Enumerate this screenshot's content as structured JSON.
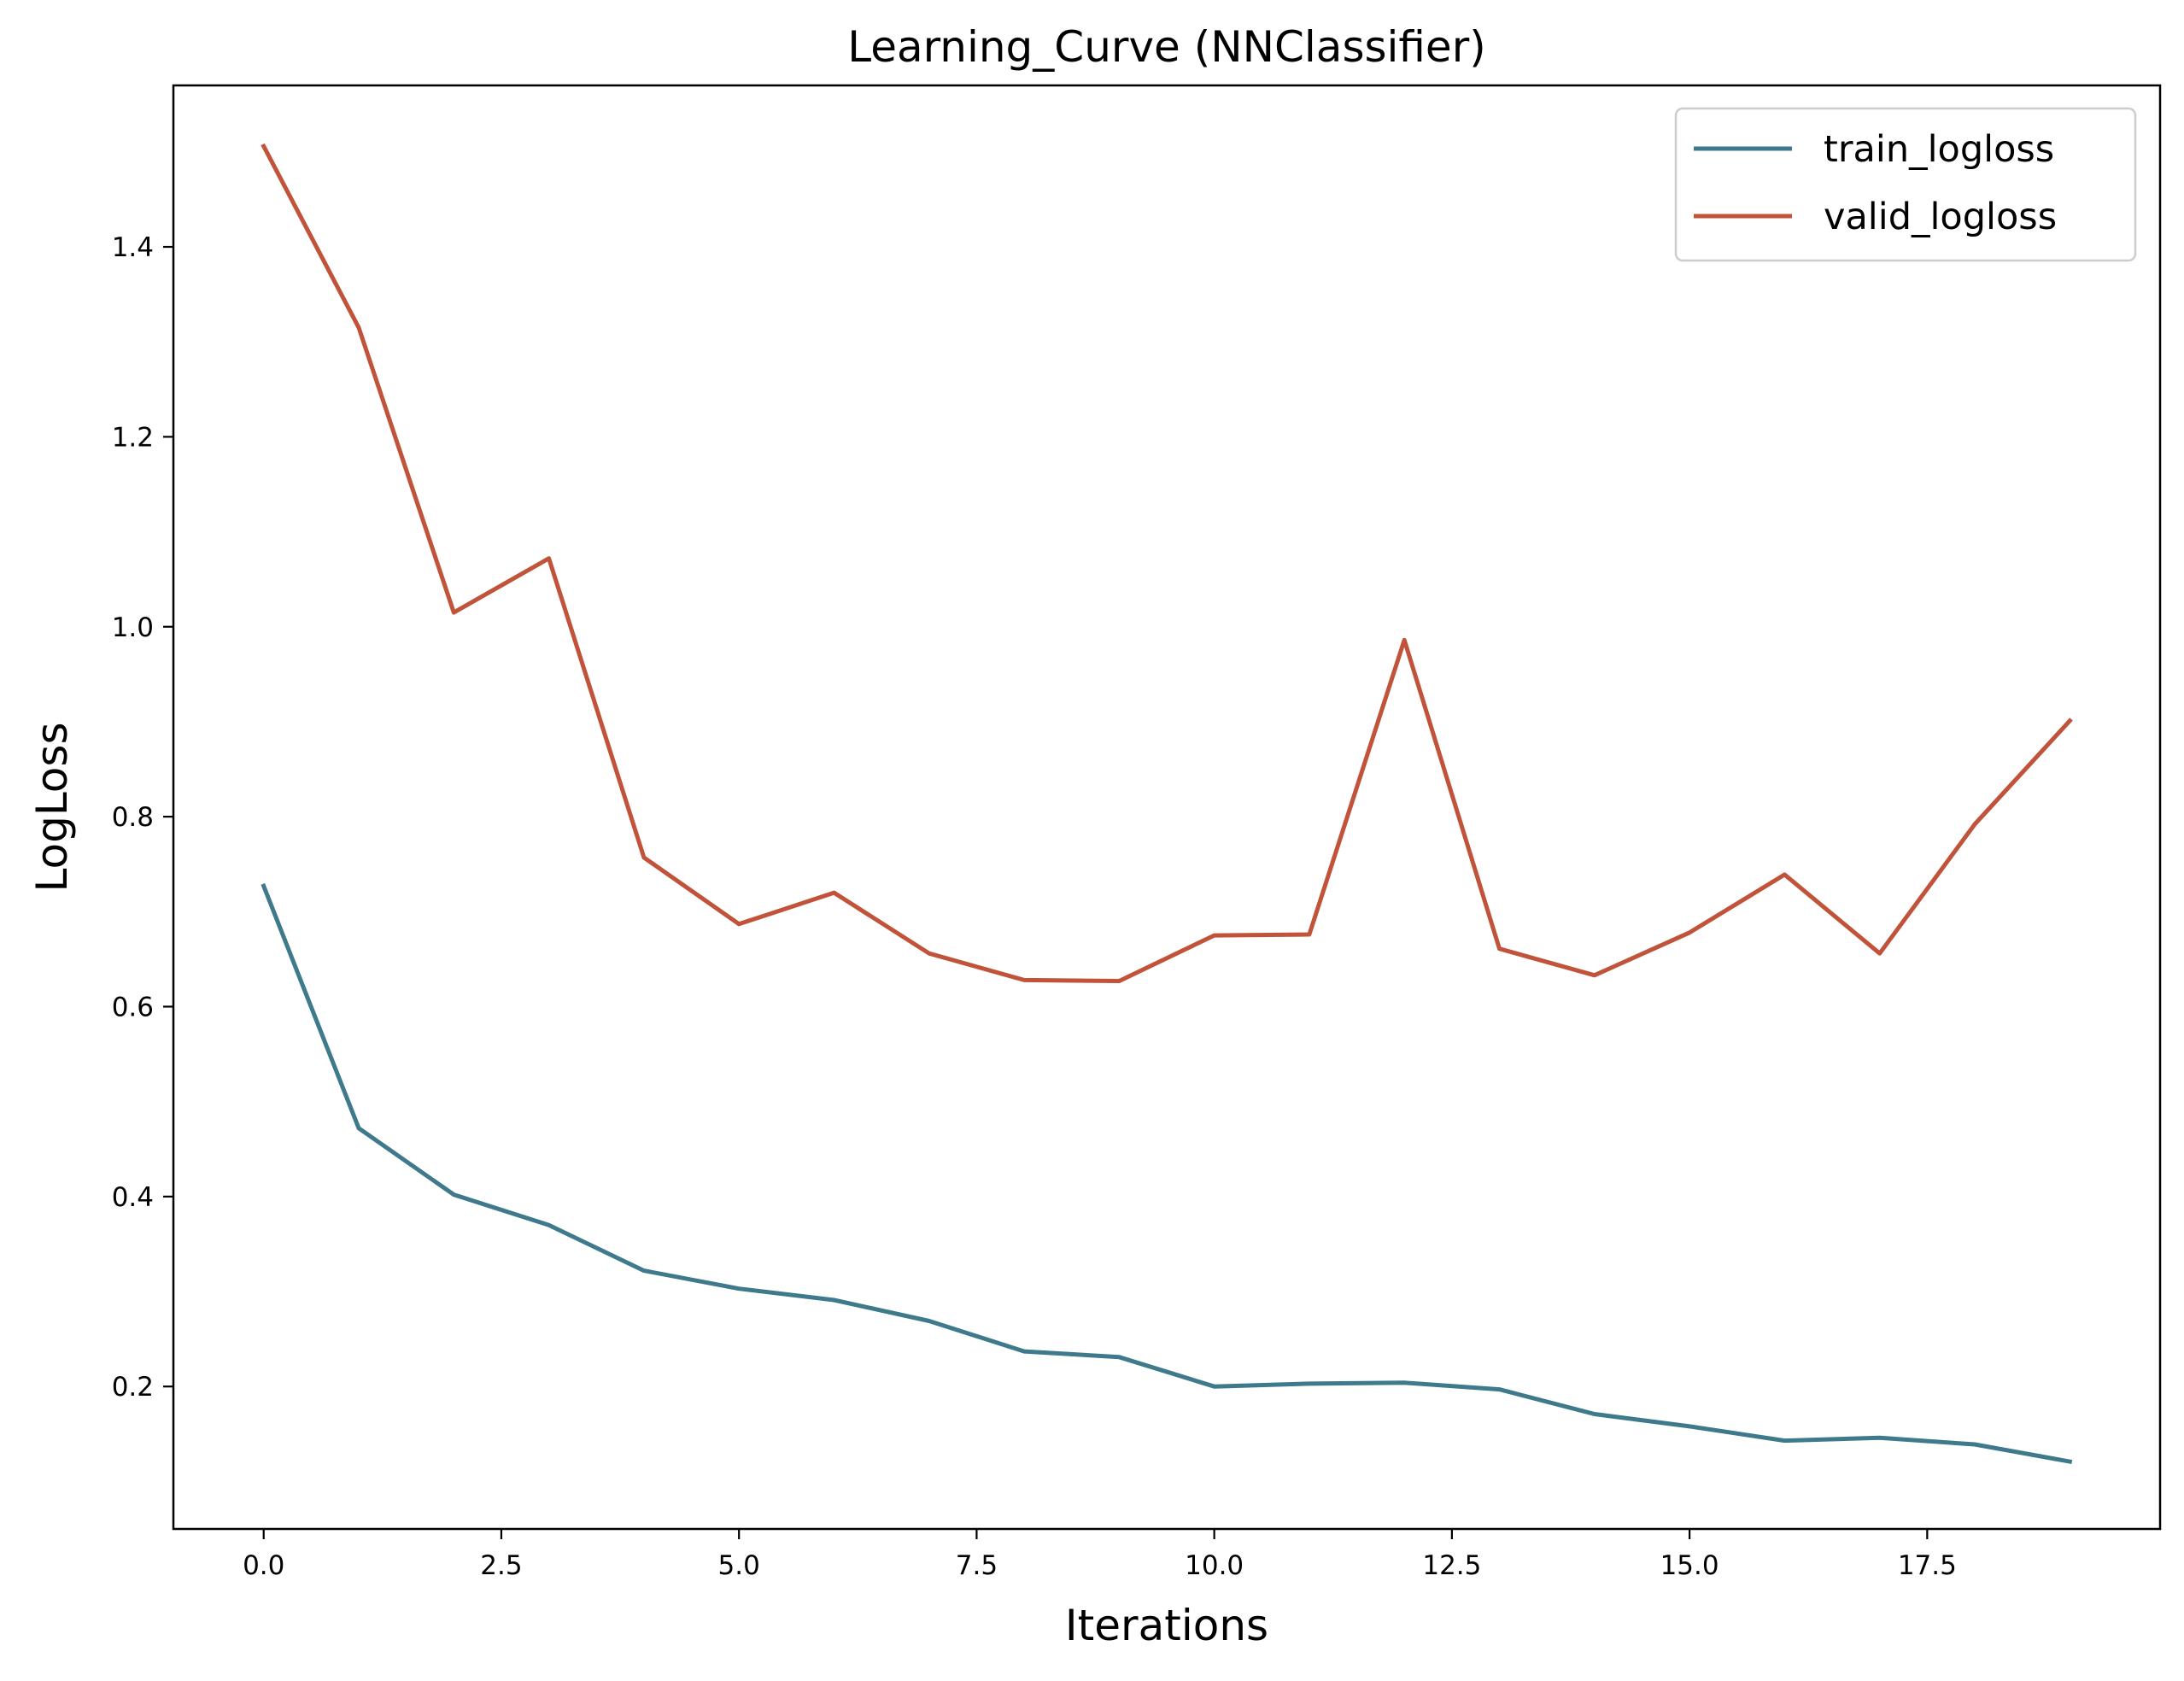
{
  "chart_data": {
    "type": "line",
    "title": "Learning_Curve (NNClassifier)",
    "xlabel": "Iterations",
    "ylabel": "LogLoss",
    "xlim": [
      -0.95,
      19.95
    ],
    "ylim": [
      0.05,
      1.57
    ],
    "x_ticks": [
      0.0,
      2.5,
      5.0,
      7.5,
      10.0,
      12.5,
      15.0,
      17.5
    ],
    "x_tick_labels": [
      "0.0",
      "2.5",
      "5.0",
      "7.5",
      "10.0",
      "12.5",
      "15.0",
      "17.5"
    ],
    "y_ticks": [
      0.2,
      0.4,
      0.6,
      0.8,
      1.0,
      1.2,
      1.4
    ],
    "y_tick_labels": [
      "0.2",
      "0.4",
      "0.6",
      "0.8",
      "1.0",
      "1.2",
      "1.4"
    ],
    "grid": false,
    "legend_position": "top-right",
    "x": [
      0,
      1,
      2,
      3,
      4,
      5,
      6,
      7,
      8,
      9,
      10,
      11,
      12,
      13,
      14,
      15,
      16,
      17,
      18,
      19
    ],
    "series": [
      {
        "name": "train_logloss",
        "color": "#3e7a8c",
        "values": [
          0.727,
          0.472,
          0.402,
          0.37,
          0.322,
          0.303,
          0.291,
          0.269,
          0.237,
          0.231,
          0.2,
          0.203,
          0.204,
          0.197,
          0.171,
          0.158,
          0.143,
          0.146,
          0.139,
          0.121
        ]
      },
      {
        "name": "valid_logloss",
        "color": "#c0533a",
        "values": [
          1.506,
          1.315,
          1.015,
          1.072,
          0.757,
          0.687,
          0.72,
          0.656,
          0.628,
          0.627,
          0.675,
          0.676,
          0.986,
          0.661,
          0.633,
          0.678,
          0.739,
          0.656,
          0.792,
          0.901
        ]
      }
    ]
  }
}
